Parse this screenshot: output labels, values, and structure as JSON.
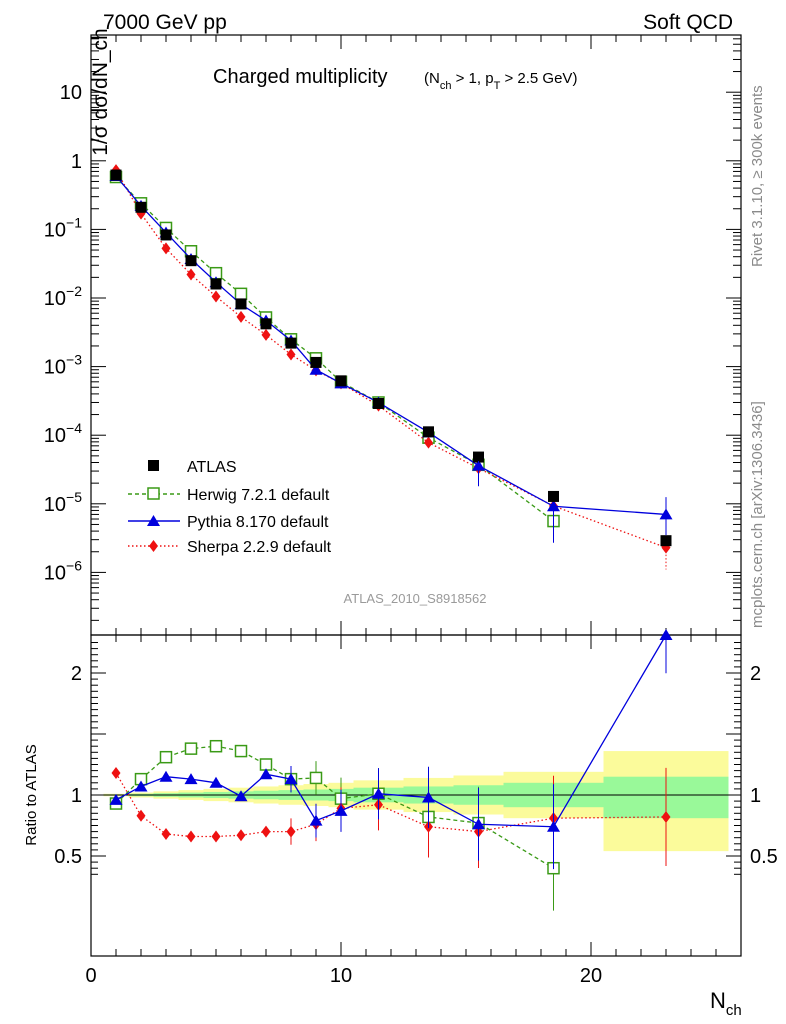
{
  "header": {
    "left": "7000 GeV pp",
    "right": "Soft QCD"
  },
  "side_text": {
    "top": "Rivet 3.1.10, ≥ 300k events",
    "bottom": "mcplots.cern.ch [arXiv:1306.3436]"
  },
  "chart_data": {
    "type": "scatter",
    "title": "Charged multiplicity",
    "title_sub": "(N_ch > 1, p_T > 2.5 GeV)",
    "analysis_label": "ATLAS_2010_S8918562",
    "xlabel": "N_ch",
    "ylabel": "1/σ dσ/dN_ch",
    "ratio_ylabel": "Ratio to ATLAS",
    "xlim": [
      0,
      26
    ],
    "ylim": [
      3e-07,
      50
    ],
    "yscale": "log",
    "ratio_ylim": [
      0.3,
      2.25
    ],
    "x_ticks": [
      "0",
      "10",
      "20"
    ],
    "y_ticks": [
      "10^-6",
      "10^-5",
      "10^-4",
      "10^-3",
      "10^-2",
      "10^-1",
      "1",
      "10"
    ],
    "ratio_ticks": [
      "0.5",
      "1",
      "2"
    ],
    "legend_position": "bottom-left",
    "colors": {
      "data": "#000000",
      "herwig": "#3a9a16",
      "pythia": "#0000dd",
      "sherpa": "#ee1111",
      "band_inner": "#99f999",
      "band_outer": "#fbfb9b"
    },
    "x": [
      1,
      2,
      3,
      4,
      5,
      6,
      7,
      8,
      9,
      10,
      11.5,
      13.5,
      15.5,
      18.5,
      23
    ],
    "series": [
      {
        "name": "ATLAS",
        "style": "data",
        "values": [
          0.62,
          0.21,
          0.083,
          0.035,
          0.016,
          0.0082,
          0.0042,
          0.0022,
          0.00115,
          0.00062,
          0.00029,
          0.000112,
          4.8e-05,
          1.28e-05,
          2.9e-06
        ]
      },
      {
        "name": "Herwig 7.2.1 default",
        "style": "herwig",
        "values": [
          0.58,
          0.24,
          0.105,
          0.048,
          0.023,
          0.0115,
          0.0052,
          0.0025,
          0.00132,
          0.0006,
          0.0003,
          9.2e-05,
          3.7e-05,
          5.6e-06,
          null
        ],
        "ratio": [
          0.93,
          1.13,
          1.31,
          1.38,
          1.4,
          1.36,
          1.25,
          1.13,
          1.14,
          0.97,
          1.01,
          0.82,
          0.77,
          0.4,
          null
        ]
      },
      {
        "name": "Pythia 8.170 default",
        "style": "pythia",
        "values": [
          0.6,
          0.22,
          0.09,
          0.037,
          0.017,
          0.0081,
          0.0047,
          0.0024,
          0.0009,
          0.00057,
          0.0003,
          0.00011,
          3.6e-05,
          9.2e-06,
          7e-06
        ],
        "ratio": [
          0.96,
          1.07,
          1.15,
          1.13,
          1.1,
          0.99,
          1.17,
          1.13,
          0.79,
          0.87,
          1.01,
          0.98,
          0.76,
          0.74,
          2.4
        ]
      },
      {
        "name": "Sherpa 2.2.9 default",
        "style": "sherpa",
        "values": [
          0.73,
          0.17,
          0.053,
          0.022,
          0.0105,
          0.0053,
          0.0029,
          0.0015,
          0.00088,
          0.00057,
          0.00027,
          7.8e-05,
          3.3e-05,
          9.3e-06,
          2.3e-06
        ],
        "ratio": [
          1.18,
          0.83,
          0.68,
          0.66,
          0.66,
          0.67,
          0.7,
          0.7,
          0.76,
          0.89,
          0.92,
          0.74,
          0.7,
          0.81,
          0.82
        ]
      }
    ],
    "error_bars": {
      "pythia_main_last": [
        3.5e-06,
        1.25e-05
      ],
      "sherpa_main_last_low": 1.1e-06,
      "herwig_main_last": [
        2.7e-06,
        8.2e-06
      ],
      "pythia_main_15": [
        1.8e-05,
        4.2e-05
      ]
    },
    "ratio_band": [
      {
        "x0": 0.5,
        "x1": 1.5,
        "in": [
          0.995,
          1.005
        ],
        "out": [
          0.99,
          1.01
        ]
      },
      {
        "x0": 1.5,
        "x1": 2.5,
        "in": [
          0.99,
          1.01
        ],
        "out": [
          0.98,
          1.02
        ]
      },
      {
        "x0": 2.5,
        "x1": 3.5,
        "in": [
          0.985,
          1.015
        ],
        "out": [
          0.97,
          1.03
        ]
      },
      {
        "x0": 3.5,
        "x1": 4.5,
        "in": [
          0.98,
          1.02
        ],
        "out": [
          0.96,
          1.04
        ]
      },
      {
        "x0": 4.5,
        "x1": 5.5,
        "in": [
          0.975,
          1.025
        ],
        "out": [
          0.95,
          1.05
        ]
      },
      {
        "x0": 5.5,
        "x1": 6.5,
        "in": [
          0.97,
          1.03
        ],
        "out": [
          0.94,
          1.06
        ]
      },
      {
        "x0": 6.5,
        "x1": 7.5,
        "in": [
          0.965,
          1.035
        ],
        "out": [
          0.93,
          1.07
        ]
      },
      {
        "x0": 7.5,
        "x1": 8.5,
        "in": [
          0.96,
          1.04
        ],
        "out": [
          0.92,
          1.08
        ]
      },
      {
        "x0": 8.5,
        "x1": 9.5,
        "in": [
          0.955,
          1.045
        ],
        "out": [
          0.91,
          1.09
        ]
      },
      {
        "x0": 9.5,
        "x1": 10.5,
        "in": [
          0.95,
          1.05
        ],
        "out": [
          0.9,
          1.1
        ]
      },
      {
        "x0": 10.5,
        "x1": 12.5,
        "in": [
          0.94,
          1.06
        ],
        "out": [
          0.88,
          1.12
        ]
      },
      {
        "x0": 12.5,
        "x1": 14.5,
        "in": [
          0.93,
          1.07
        ],
        "out": [
          0.86,
          1.14
        ]
      },
      {
        "x0": 14.5,
        "x1": 16.5,
        "in": [
          0.92,
          1.08
        ],
        "out": [
          0.84,
          1.16
        ]
      },
      {
        "x0": 16.5,
        "x1": 20.5,
        "in": [
          0.9,
          1.1
        ],
        "out": [
          0.81,
          1.19
        ]
      },
      {
        "x0": 20.5,
        "x1": 25.5,
        "in": [
          0.81,
          1.15
        ],
        "out": [
          0.54,
          1.36
        ]
      }
    ]
  }
}
